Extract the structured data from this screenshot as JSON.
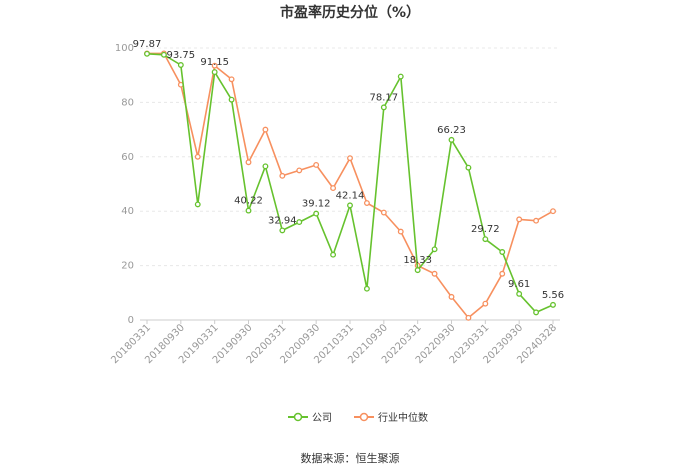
{
  "source_text": "数据来源：恒生聚源",
  "chart_data": {
    "type": "line",
    "title": "市盈率历史分位（%）",
    "xlabel": "",
    "ylabel": "",
    "ylim": [
      0,
      100
    ],
    "yticks": [
      0,
      20,
      40,
      60,
      80,
      100
    ],
    "grid": true,
    "legend_position": "bottom",
    "x_tick_labels": [
      "20180331",
      "20180930",
      "20190331",
      "20190930",
      "20200331",
      "20200930",
      "20210331",
      "20210930",
      "20220331",
      "20220930",
      "20230331",
      "20230930",
      "20240328"
    ],
    "x": [
      "20180331",
      "20180630",
      "20180930",
      "20181231",
      "20190331",
      "20190630",
      "20190930",
      "20191231",
      "20200331",
      "20200630",
      "20200930",
      "20201231",
      "20210331",
      "20210630",
      "20210930",
      "20211231",
      "20220331",
      "20220630",
      "20220930",
      "20221231",
      "20230331",
      "20230630",
      "20230930",
      "20231231",
      "20240328"
    ],
    "series": [
      {
        "name": "公司",
        "color": "#66c22e",
        "values": [
          97.87,
          97.5,
          93.75,
          42.5,
          91.15,
          81.0,
          40.22,
          56.5,
          32.94,
          36.0,
          39.12,
          24.0,
          42.14,
          11.5,
          78.17,
          89.5,
          18.33,
          26.0,
          66.23,
          56.0,
          29.72,
          25.0,
          9.61,
          2.8,
          5.56
        ],
        "labels": [
          "97.87",
          "",
          "93.75",
          "",
          "91.15",
          "",
          "40.22",
          "",
          "32.94",
          "",
          "39.12",
          "",
          "42.14",
          "",
          "78.17",
          "",
          "18.33",
          "",
          "66.23",
          "",
          "29.72",
          "",
          "9.61",
          "",
          "5.56"
        ]
      },
      {
        "name": "行业中位数",
        "color": "#f7905f",
        "values": [
          98.0,
          98.0,
          86.5,
          60.0,
          93.5,
          88.5,
          58.0,
          70.0,
          53.0,
          55.0,
          57.0,
          48.5,
          59.5,
          43.0,
          39.5,
          32.5,
          20.0,
          17.0,
          8.5,
          0.8,
          6.0,
          17.0,
          37.0,
          36.5,
          40.0
        ]
      }
    ]
  }
}
